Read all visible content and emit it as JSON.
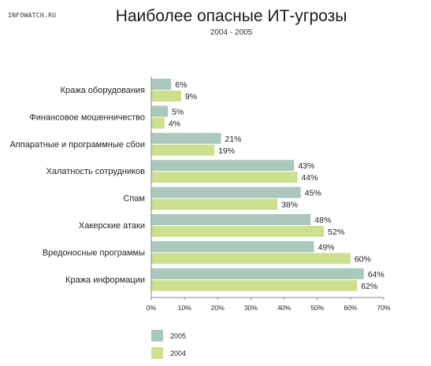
{
  "watermark": "INFOWATCH.RU",
  "chart_data": {
    "type": "bar",
    "orientation": "horizontal",
    "title": "Наиболее опасные ИТ-угрозы",
    "subtitle": "2004 - 2005",
    "categories": [
      "Кража оборудования",
      "Финансовое мошенничество",
      "Аппаратные и программные сбои",
      "Халатность сотрудников",
      "Спам",
      "Хакерские атаки",
      "Вредоносные программы",
      "Кража информации"
    ],
    "series": [
      {
        "name": "2005",
        "values": [
          6,
          5,
          21,
          43,
          45,
          48,
          49,
          64
        ]
      },
      {
        "name": "2004",
        "values": [
          9,
          4,
          19,
          44,
          38,
          52,
          60,
          62
        ]
      }
    ],
    "value_suffix": "%",
    "xlim": [
      0,
      70
    ],
    "xticks": [
      "0%",
      "10%",
      "20%",
      "30%",
      "40%",
      "50%",
      "60%",
      "70%"
    ],
    "grid": false,
    "legend_position": "bottom-left",
    "colors": {
      "2005": "#abc8bc",
      "2004": "#cce08f",
      "axis": "#888888"
    }
  }
}
